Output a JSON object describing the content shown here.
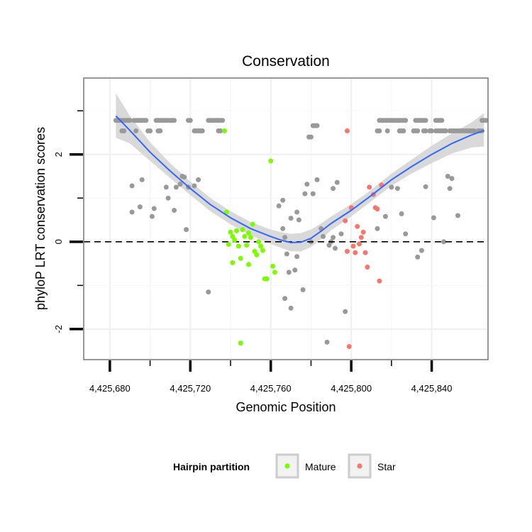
{
  "chart_data": {
    "type": "scatter",
    "title": "Conservation",
    "xlabel": "Genomic Position",
    "ylabel": "phyloP LRT conservation scores",
    "xlim": [
      4425667,
      4425868
    ],
    "ylim": [
      -2.7,
      3.75
    ],
    "x_ticks": [
      4425680,
      4425720,
      4425760,
      4425800,
      4425840
    ],
    "x_tick_labels": [
      "4,425,680",
      "4,425,720",
      "4,425,760",
      "4,425,800",
      "4,425,840"
    ],
    "y_ticks": [
      -2,
      0,
      2
    ],
    "y_tick_labels": [
      "-2",
      "0",
      "2"
    ],
    "reference_line": {
      "y": 0,
      "style": "dashed"
    },
    "legend": {
      "title": "Hairpin partition",
      "position": "bottom",
      "entries": [
        {
          "label": "Mature",
          "color": "#7cfc00"
        },
        {
          "label": "Star",
          "color": "#f8766d"
        }
      ]
    },
    "colors": {
      "other": "#999999",
      "mature": "#7cfc00",
      "star": "#f8766d",
      "smooth": "#3366ff",
      "band": "#d9d9d9"
    },
    "series": [
      {
        "name": "Other",
        "points": [
          [
            4425683,
            2.78
          ],
          [
            4425684,
            2.78
          ],
          [
            4425685,
            2.78
          ],
          [
            4425686,
            2.78
          ],
          [
            4425687,
            2.78
          ],
          [
            4425688,
            2.78
          ],
          [
            4425689,
            2.78
          ],
          [
            4425690,
            2.78
          ],
          [
            4425692,
            2.78
          ],
          [
            4425693,
            2.78
          ],
          [
            4425694,
            2.78
          ],
          [
            4425695,
            2.78
          ],
          [
            4425696,
            2.78
          ],
          [
            4425697,
            2.78
          ],
          [
            4425698,
            2.78
          ],
          [
            4425703,
            2.78
          ],
          [
            4425704,
            2.78
          ],
          [
            4425705,
            2.78
          ],
          [
            4425706,
            2.78
          ],
          [
            4425707,
            2.78
          ],
          [
            4425708,
            2.78
          ],
          [
            4425709,
            2.78
          ],
          [
            4425710,
            2.78
          ],
          [
            4425711,
            2.78
          ],
          [
            4425712,
            2.78
          ],
          [
            4425719,
            2.78
          ],
          [
            4425720,
            2.78
          ],
          [
            4425729,
            2.78
          ],
          [
            4425730,
            2.78
          ],
          [
            4425731,
            2.78
          ],
          [
            4425732,
            2.78
          ],
          [
            4425733,
            2.78
          ],
          [
            4425734,
            2.78
          ],
          [
            4425735,
            2.78
          ],
          [
            4425736,
            2.78
          ],
          [
            4425686,
            2.54
          ],
          [
            4425687,
            2.54
          ],
          [
            4425693,
            2.54
          ],
          [
            4425699,
            2.54
          ],
          [
            4425700,
            2.54
          ],
          [
            4425704,
            2.54
          ],
          [
            4425705,
            2.54
          ],
          [
            4425722,
            2.54
          ],
          [
            4425723,
            2.54
          ],
          [
            4425724,
            2.54
          ],
          [
            4425725,
            2.54
          ],
          [
            4425726,
            2.54
          ],
          [
            4425734,
            2.54
          ],
          [
            4425735,
            2.54
          ],
          [
            4425814,
            2.78
          ],
          [
            4425815,
            2.78
          ],
          [
            4425816,
            2.78
          ],
          [
            4425817,
            2.78
          ],
          [
            4425818,
            2.78
          ],
          [
            4425819,
            2.78
          ],
          [
            4425820,
            2.78
          ],
          [
            4425821,
            2.78
          ],
          [
            4425822,
            2.78
          ],
          [
            4425823,
            2.78
          ],
          [
            4425824,
            2.78
          ],
          [
            4425825,
            2.78
          ],
          [
            4425826,
            2.78
          ],
          [
            4425827,
            2.78
          ],
          [
            4425832,
            2.78
          ],
          [
            4425833,
            2.78
          ],
          [
            4425834,
            2.78
          ],
          [
            4425835,
            2.78
          ],
          [
            4425836,
            2.78
          ],
          [
            4425837,
            2.78
          ],
          [
            4425842,
            2.78
          ],
          [
            4425843,
            2.78
          ],
          [
            4425844,
            2.78
          ],
          [
            4425845,
            2.78
          ],
          [
            4425865,
            2.78
          ],
          [
            4425866,
            2.78
          ],
          [
            4425867,
            2.78
          ],
          [
            4425813,
            2.54
          ],
          [
            4425814,
            2.54
          ],
          [
            4425818,
            2.54
          ],
          [
            4425824,
            2.54
          ],
          [
            4425825,
            2.54
          ],
          [
            4425826,
            2.54
          ],
          [
            4425831,
            2.54
          ],
          [
            4425832,
            2.54
          ],
          [
            4425833,
            2.54
          ],
          [
            4425836,
            2.54
          ],
          [
            4425837,
            2.54
          ],
          [
            4425839,
            2.54
          ],
          [
            4425840,
            2.54
          ],
          [
            4425842,
            2.54
          ],
          [
            4425843,
            2.54
          ],
          [
            4425844,
            2.54
          ],
          [
            4425845,
            2.54
          ],
          [
            4425846,
            2.54
          ],
          [
            4425847,
            2.54
          ],
          [
            4425849,
            2.54
          ],
          [
            4425850,
            2.54
          ],
          [
            4425851,
            2.54
          ],
          [
            4425852,
            2.54
          ],
          [
            4425853,
            2.54
          ],
          [
            4425854,
            2.54
          ],
          [
            4425855,
            2.54
          ],
          [
            4425856,
            2.54
          ],
          [
            4425857,
            2.54
          ],
          [
            4425858,
            2.54
          ],
          [
            4425859,
            2.54
          ],
          [
            4425860,
            2.54
          ],
          [
            4425861,
            2.54
          ],
          [
            4425863,
            2.54
          ],
          [
            4425864,
            2.54
          ],
          [
            4425865,
            2.54
          ],
          [
            4425781,
            2.66
          ],
          [
            4425782,
            2.66
          ],
          [
            4425783,
            2.66
          ],
          [
            4425779,
            2.4
          ],
          [
            4425780,
            2.4
          ],
          [
            4425696,
            1.42
          ],
          [
            4425691,
            1.28
          ],
          [
            4425708,
            1.25
          ],
          [
            4425713,
            1.25
          ],
          [
            4425715,
            1.32
          ],
          [
            4425716,
            1.5
          ],
          [
            4425717,
            1.48
          ],
          [
            4425719,
            1.25
          ],
          [
            4425722,
            1.28
          ],
          [
            4425724,
            1.42
          ],
          [
            4425695,
            0.8
          ],
          [
            4425691,
            0.68
          ],
          [
            4425701,
            0.58
          ],
          [
            4425702,
            0.76
          ],
          [
            4425709,
            1.0
          ],
          [
            4425712,
            0.72
          ],
          [
            4425718,
            0.28
          ],
          [
            4425729,
            -1.15
          ],
          [
            4425764,
            0.82
          ],
          [
            4425766,
            0.95
          ],
          [
            4425766,
            0.3
          ],
          [
            4425767,
            0.1
          ],
          [
            4425768,
            -0.28
          ],
          [
            4425769,
            -0.7
          ],
          [
            4425770,
            0.54
          ],
          [
            4425770,
            -1.52
          ],
          [
            4425772,
            -0.65
          ],
          [
            4425773,
            0.68
          ],
          [
            4425773,
            -0.34
          ],
          [
            4425774,
            0.5
          ],
          [
            4425776,
            -1.1
          ],
          [
            4425777,
            1.1
          ],
          [
            4425778,
            1.32
          ],
          [
            4425781,
            1.1
          ],
          [
            4425783,
            1.42
          ],
          [
            4425780,
            0.0
          ],
          [
            4425785,
            0.3
          ],
          [
            4425786,
            0.12
          ],
          [
            4425788,
            -2.3
          ],
          [
            4425789,
            -0.08
          ],
          [
            4425790,
            0.0
          ],
          [
            4425791,
            1.22
          ],
          [
            4425791,
            0.1
          ],
          [
            4425792,
            -0.15
          ],
          [
            4425793,
            1.36
          ],
          [
            4425795,
            0.18
          ],
          [
            4425797,
            -1.6
          ],
          [
            4425767,
            -1.3
          ],
          [
            4425813,
            0.3
          ],
          [
            4425817,
            0.58
          ],
          [
            4425820,
            1.25
          ],
          [
            4425823,
            1.22
          ],
          [
            4425825,
            0.64
          ],
          [
            4425827,
            0.18
          ],
          [
            4425833,
            -0.35
          ],
          [
            4425835,
            -0.2
          ],
          [
            4425837,
            1.26
          ],
          [
            4425841,
            0.55
          ],
          [
            4425846,
            0.0
          ],
          [
            4425848,
            1.5
          ],
          [
            4425849,
            1.22
          ],
          [
            4425850,
            1.45
          ],
          [
            4425853,
            0.6
          ]
        ]
      },
      {
        "name": "Mature",
        "points": [
          [
            4425737,
            2.54
          ],
          [
            4425738,
            0.68
          ],
          [
            4425739,
            -0.06
          ],
          [
            4425740,
            0.22
          ],
          [
            4425741,
            0.12
          ],
          [
            4425742,
            0.04
          ],
          [
            4425741,
            -0.48
          ],
          [
            4425743,
            0.25
          ],
          [
            4425744,
            -0.1
          ],
          [
            4425745,
            -0.38
          ],
          [
            4425746,
            0.28
          ],
          [
            4425747,
            0.12
          ],
          [
            4425748,
            -0.08
          ],
          [
            4425749,
            0.2
          ],
          [
            4425749,
            -0.52
          ],
          [
            4425750,
            0.1
          ],
          [
            4425751,
            0.4
          ],
          [
            4425752,
            -0.22
          ],
          [
            4425753,
            -0.3
          ],
          [
            4425754,
            0.0
          ],
          [
            4425755,
            -0.1
          ],
          [
            4425756,
            -0.2
          ],
          [
            4425757,
            -0.85
          ],
          [
            4425758,
            -0.85
          ],
          [
            4425760,
            1.85
          ],
          [
            4425761,
            -0.56
          ],
          [
            4425762,
            -0.7
          ],
          [
            4425745,
            -2.32
          ]
        ]
      },
      {
        "name": "Star",
        "points": [
          [
            4425798,
            2.54
          ],
          [
            4425797,
            0.48
          ],
          [
            4425798,
            -0.22
          ],
          [
            4425799,
            -2.4
          ],
          [
            4425800,
            0.78
          ],
          [
            4425801,
            -0.1
          ],
          [
            4425802,
            -0.25
          ],
          [
            4425803,
            0.35
          ],
          [
            4425804,
            -0.05
          ],
          [
            4425805,
            0.1
          ],
          [
            4425806,
            0.22
          ],
          [
            4425807,
            -0.25
          ],
          [
            4425808,
            -0.58
          ],
          [
            4425809,
            1.25
          ],
          [
            4425811,
            1.08
          ],
          [
            4425812,
            0.78
          ],
          [
            4425813,
            0.75
          ],
          [
            4425814,
            -0.9
          ],
          [
            4425815,
            1.3
          ]
        ]
      }
    ],
    "smooth_line": {
      "x": [
        4425683,
        4425690,
        4425700,
        4425710,
        4425720,
        4425730,
        4425740,
        4425750,
        4425760,
        4425765,
        4425770,
        4425775,
        4425780,
        4425785,
        4425790,
        4425800,
        4425810,
        4425820,
        4425830,
        4425840,
        4425850,
        4425860,
        4425866
      ],
      "y": [
        2.88,
        2.55,
        2.05,
        1.62,
        1.22,
        0.85,
        0.55,
        0.3,
        0.12,
        0.04,
        -0.02,
        -0.01,
        0.08,
        0.24,
        0.42,
        0.72,
        1.06,
        1.42,
        1.72,
        2.0,
        2.25,
        2.45,
        2.55
      ]
    },
    "confidence_band": {
      "x": [
        4425683,
        4425690,
        4425700,
        4425710,
        4425720,
        4425730,
        4425740,
        4425750,
        4425760,
        4425765,
        4425770,
        4425775,
        4425780,
        4425785,
        4425790,
        4425800,
        4425810,
        4425820,
        4425830,
        4425840,
        4425850,
        4425860,
        4425866
      ],
      "lower": [
        2.38,
        2.25,
        1.85,
        1.46,
        1.07,
        0.7,
        0.4,
        0.15,
        -0.05,
        -0.14,
        -0.22,
        -0.22,
        -0.12,
        0.06,
        0.26,
        0.58,
        0.93,
        1.28,
        1.56,
        1.8,
        2.02,
        2.16,
        2.18
      ],
      "upper": [
        3.4,
        2.88,
        2.28,
        1.8,
        1.38,
        1.0,
        0.7,
        0.45,
        0.28,
        0.22,
        0.18,
        0.2,
        0.28,
        0.42,
        0.58,
        0.86,
        1.19,
        1.56,
        1.88,
        2.2,
        2.48,
        2.74,
        2.95
      ]
    }
  }
}
